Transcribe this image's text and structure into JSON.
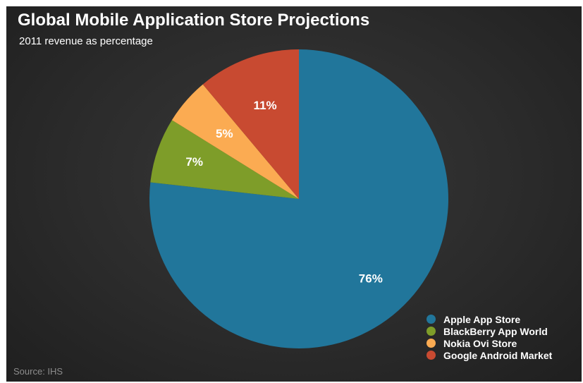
{
  "chart_data": {
    "type": "pie",
    "title": "Global Mobile Application Store Projections",
    "subtitle": "2011 revenue as percentage",
    "source": "Source: IHS",
    "legend_position": "bottom-right",
    "slices": [
      {
        "name": "Apple App Store",
        "value": 76,
        "label": "76%",
        "color": "#21769b"
      },
      {
        "name": "BlackBerry App World",
        "value": 7,
        "label": "7%",
        "color": "#7e9d29"
      },
      {
        "name": "Nokia Ovi Store",
        "value": 5,
        "label": "5%",
        "color": "#fbab52"
      },
      {
        "name": "Google Android Market",
        "value": 11,
        "label": "11%",
        "color": "#c84a31"
      }
    ]
  }
}
